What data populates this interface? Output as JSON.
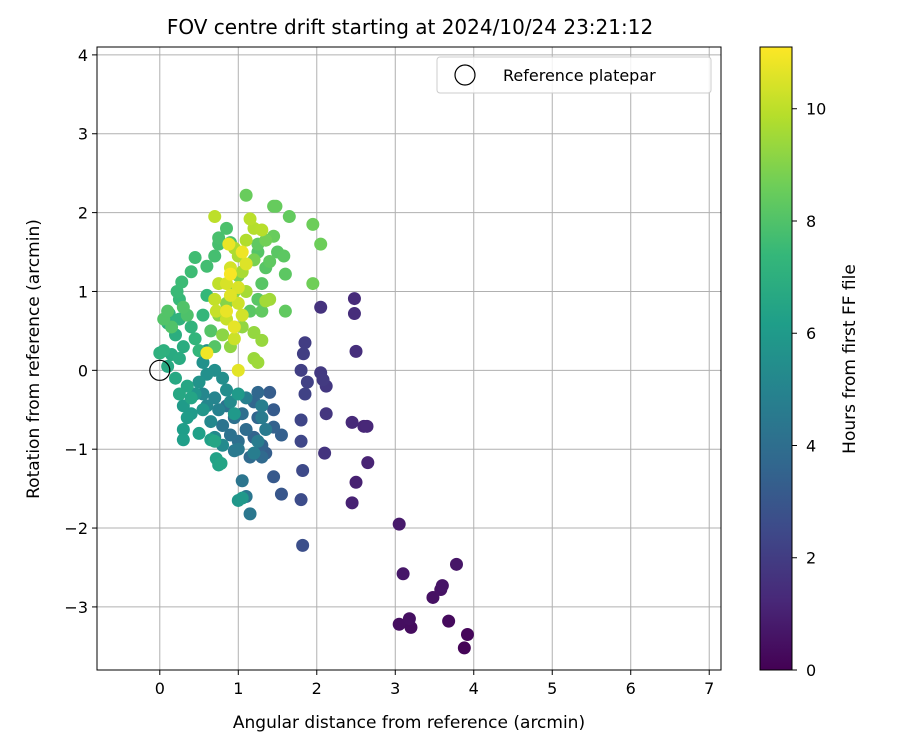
{
  "chart_data": {
    "type": "scatter",
    "title": "FOV centre drift starting at 2024/10/24 23:21:12",
    "xlabel": "Angular distance from reference (arcmin)",
    "ylabel": "Rotation from reference (arcmin)",
    "xlim": [
      -0.8,
      7.15
    ],
    "ylim": [
      -3.8,
      4.1
    ],
    "xticks": [
      0,
      1,
      2,
      3,
      4,
      5,
      6,
      7
    ],
    "yticks": [
      -3,
      -2,
      -1,
      0,
      1,
      2,
      3,
      4
    ],
    "xtick_labels": [
      "0",
      "1",
      "2",
      "3",
      "4",
      "5",
      "6",
      "7"
    ],
    "ytick_labels": [
      "−3",
      "−2",
      "−1",
      "0",
      "1",
      "2",
      "3",
      "4"
    ],
    "grid": true,
    "legend": {
      "position": "top-right",
      "entries": [
        "Reference platepar"
      ]
    },
    "reference_point": {
      "x": 0,
      "y": 0,
      "label": "Reference platepar"
    },
    "colorbar": {
      "label": "Hours from first FF file",
      "min": 0,
      "max": 11.1,
      "ticks": [
        0,
        2,
        4,
        6,
        8,
        10
      ],
      "tick_labels": [
        "0",
        "2",
        "4",
        "6",
        "8",
        "10"
      ],
      "colormap": "viridis",
      "stops": [
        "#440154",
        "#482878",
        "#3e4989",
        "#31688e",
        "#26828e",
        "#1f9e89",
        "#35b779",
        "#6ece58",
        "#b5de2b",
        "#fde725"
      ]
    },
    "points": [
      {
        "x": 3.88,
        "y": -3.52,
        "t": 0.1
      },
      {
        "x": 3.92,
        "y": -3.35,
        "t": 0.2
      },
      {
        "x": 3.68,
        "y": -3.18,
        "t": 0.3
      },
      {
        "x": 3.2,
        "y": -3.26,
        "t": 0.35
      },
      {
        "x": 3.05,
        "y": -3.22,
        "t": 0.4
      },
      {
        "x": 3.18,
        "y": -3.15,
        "t": 0.45
      },
      {
        "x": 3.48,
        "y": -2.88,
        "t": 0.5
      },
      {
        "x": 3.58,
        "y": -2.78,
        "t": 0.55
      },
      {
        "x": 3.6,
        "y": -2.73,
        "t": 0.6
      },
      {
        "x": 3.78,
        "y": -2.46,
        "t": 0.65
      },
      {
        "x": 3.1,
        "y": -2.58,
        "t": 0.7
      },
      {
        "x": 3.05,
        "y": -1.95,
        "t": 0.8
      },
      {
        "x": 2.5,
        "y": -1.42,
        "t": 1.0
      },
      {
        "x": 2.45,
        "y": -1.68,
        "t": 1.05
      },
      {
        "x": 2.65,
        "y": -1.17,
        "t": 1.1
      },
      {
        "x": 2.6,
        "y": -0.71,
        "t": 1.2
      },
      {
        "x": 2.64,
        "y": -0.71,
        "t": 1.25
      },
      {
        "x": 2.45,
        "y": -0.66,
        "t": 1.3
      },
      {
        "x": 2.48,
        "y": 0.91,
        "t": 1.4
      },
      {
        "x": 2.48,
        "y": 0.72,
        "t": 1.45
      },
      {
        "x": 2.5,
        "y": 0.24,
        "t": 1.5
      },
      {
        "x": 2.05,
        "y": 0.8,
        "t": 1.6
      },
      {
        "x": 2.1,
        "y": -1.05,
        "t": 1.7
      },
      {
        "x": 2.12,
        "y": -0.55,
        "t": 1.75
      },
      {
        "x": 2.12,
        "y": -0.2,
        "t": 1.8
      },
      {
        "x": 2.05,
        "y": -0.03,
        "t": 1.85
      },
      {
        "x": 2.08,
        "y": -0.12,
        "t": 1.9
      },
      {
        "x": 1.85,
        "y": 0.35,
        "t": 2.0
      },
      {
        "x": 1.83,
        "y": 0.21,
        "t": 2.05
      },
      {
        "x": 1.8,
        "y": 0.0,
        "t": 2.1
      },
      {
        "x": 1.88,
        "y": -0.15,
        "t": 2.15
      },
      {
        "x": 1.85,
        "y": -0.3,
        "t": 2.2
      },
      {
        "x": 1.8,
        "y": -0.63,
        "t": 2.3
      },
      {
        "x": 1.8,
        "y": -0.9,
        "t": 2.4
      },
      {
        "x": 1.82,
        "y": -1.27,
        "t": 2.5
      },
      {
        "x": 1.8,
        "y": -1.64,
        "t": 2.6
      },
      {
        "x": 1.82,
        "y": -2.22,
        "t": 2.7
      },
      {
        "x": 1.55,
        "y": -1.57,
        "t": 3.0
      },
      {
        "x": 1.45,
        "y": -1.35,
        "t": 3.1
      },
      {
        "x": 1.45,
        "y": -0.5,
        "t": 3.2
      },
      {
        "x": 1.4,
        "y": -0.28,
        "t": 3.25
      },
      {
        "x": 1.35,
        "y": -1.05,
        "t": 3.3
      },
      {
        "x": 1.55,
        "y": -0.82,
        "t": 3.4
      },
      {
        "x": 1.45,
        "y": -0.72,
        "t": 3.45
      },
      {
        "x": 1.3,
        "y": -0.95,
        "t": 3.5
      },
      {
        "x": 1.2,
        "y": -0.85,
        "t": 3.55
      },
      {
        "x": 1.25,
        "y": -0.6,
        "t": 3.6
      },
      {
        "x": 1.2,
        "y": -0.4,
        "t": 3.65
      },
      {
        "x": 1.25,
        "y": -0.28,
        "t": 3.7
      },
      {
        "x": 1.3,
        "y": -1.1,
        "t": 3.8
      },
      {
        "x": 1.15,
        "y": -1.1,
        "t": 3.85
      },
      {
        "x": 1.1,
        "y": -0.75,
        "t": 3.9
      },
      {
        "x": 1.05,
        "y": -0.55,
        "t": 4.0
      },
      {
        "x": 1.0,
        "y": -0.9,
        "t": 4.05
      },
      {
        "x": 0.95,
        "y": -0.6,
        "t": 4.1
      },
      {
        "x": 0.9,
        "y": -0.82,
        "t": 4.15
      },
      {
        "x": 0.85,
        "y": -0.45,
        "t": 4.2
      },
      {
        "x": 0.8,
        "y": -0.7,
        "t": 4.25
      },
      {
        "x": 1.05,
        "y": -1.4,
        "t": 4.3
      },
      {
        "x": 1.1,
        "y": -1.6,
        "t": 4.35
      },
      {
        "x": 1.15,
        "y": -1.82,
        "t": 4.4
      },
      {
        "x": 1.0,
        "y": -1.0,
        "t": 4.45
      },
      {
        "x": 0.95,
        "y": -1.02,
        "t": 4.5
      },
      {
        "x": 1.35,
        "y": -0.75,
        "t": 4.55
      },
      {
        "x": 1.3,
        "y": -0.6,
        "t": 4.6
      },
      {
        "x": 1.25,
        "y": -0.9,
        "t": 4.65
      },
      {
        "x": 1.2,
        "y": -1.05,
        "t": 4.7
      },
      {
        "x": 1.3,
        "y": -0.45,
        "t": 4.75
      },
      {
        "x": 1.1,
        "y": -0.35,
        "t": 4.8
      },
      {
        "x": 0.75,
        "y": -0.5,
        "t": 4.9
      },
      {
        "x": 0.7,
        "y": -0.35,
        "t": 5.0
      },
      {
        "x": 0.6,
        "y": -0.45,
        "t": 5.1
      },
      {
        "x": 0.55,
        "y": -0.3,
        "t": 5.15
      },
      {
        "x": 0.65,
        "y": -0.65,
        "t": 5.2
      },
      {
        "x": 0.7,
        "y": -0.85,
        "t": 5.25
      },
      {
        "x": 0.8,
        "y": -0.95,
        "t": 5.3
      },
      {
        "x": 0.9,
        "y": -0.4,
        "t": 5.35
      },
      {
        "x": 0.85,
        "y": -0.25,
        "t": 5.4
      },
      {
        "x": 0.8,
        "y": -0.1,
        "t": 5.45
      },
      {
        "x": 0.7,
        "y": 0.0,
        "t": 5.5
      },
      {
        "x": 0.6,
        "y": -0.05,
        "t": 5.55
      },
      {
        "x": 0.55,
        "y": 0.1,
        "t": 5.6
      },
      {
        "x": 0.6,
        "y": 0.25,
        "t": 5.65
      },
      {
        "x": 0.5,
        "y": -0.15,
        "t": 5.7
      },
      {
        "x": 0.45,
        "y": -0.3,
        "t": 5.75
      },
      {
        "x": 0.55,
        "y": -0.5,
        "t": 5.8
      },
      {
        "x": 1.0,
        "y": -1.65,
        "t": 5.85
      },
      {
        "x": 1.05,
        "y": -1.62,
        "t": 5.9
      },
      {
        "x": 0.95,
        "y": -0.55,
        "t": 5.95
      },
      {
        "x": 1.0,
        "y": -0.3,
        "t": 6.0
      },
      {
        "x": 0.4,
        "y": -0.55,
        "t": 6.0
      },
      {
        "x": 0.3,
        "y": -0.45,
        "t": 6.05
      },
      {
        "x": 0.35,
        "y": -0.6,
        "t": 6.1
      },
      {
        "x": 0.3,
        "y": -0.75,
        "t": 6.15
      },
      {
        "x": 0.3,
        "y": -0.88,
        "t": 6.2
      },
      {
        "x": 0.5,
        "y": -0.8,
        "t": 6.25
      },
      {
        "x": 0.65,
        "y": -0.88,
        "t": 6.3
      },
      {
        "x": 0.72,
        "y": -1.12,
        "t": 6.35
      },
      {
        "x": 0.75,
        "y": -1.2,
        "t": 6.4
      },
      {
        "x": 0.78,
        "y": -1.18,
        "t": 6.45
      },
      {
        "x": 0.7,
        "y": -0.9,
        "t": 6.5
      },
      {
        "x": 0.4,
        "y": -0.35,
        "t": 6.5
      },
      {
        "x": 0.35,
        "y": -0.2,
        "t": 6.55
      },
      {
        "x": 0.25,
        "y": -0.3,
        "t": 6.6
      },
      {
        "x": 0.2,
        "y": -0.1,
        "t": 6.65
      },
      {
        "x": 0.1,
        "y": 0.05,
        "t": 6.7
      },
      {
        "x": 0.15,
        "y": 0.2,
        "t": 6.75
      },
      {
        "x": 0.25,
        "y": 0.15,
        "t": 6.8
      },
      {
        "x": 0.3,
        "y": 0.3,
        "t": 6.85
      },
      {
        "x": 0.2,
        "y": 0.45,
        "t": 6.9
      },
      {
        "x": 0.1,
        "y": 0.6,
        "t": 6.95
      },
      {
        "x": 0.05,
        "y": 0.25,
        "t": 7.0
      },
      {
        "x": 0.0,
        "y": 0.22,
        "t": 7.05
      },
      {
        "x": 0.12,
        "y": 0.72,
        "t": 7.1
      },
      {
        "x": 0.25,
        "y": 0.65,
        "t": 7.15
      },
      {
        "x": 0.4,
        "y": 0.55,
        "t": 7.2
      },
      {
        "x": 0.45,
        "y": 0.4,
        "t": 7.25
      },
      {
        "x": 0.5,
        "y": 0.25,
        "t": 7.3
      },
      {
        "x": 0.55,
        "y": 0.7,
        "t": 7.35
      },
      {
        "x": 0.6,
        "y": 0.95,
        "t": 7.4
      },
      {
        "x": 0.25,
        "y": 0.9,
        "t": 7.45
      },
      {
        "x": 0.22,
        "y": 1.0,
        "t": 7.5
      },
      {
        "x": 0.28,
        "y": 1.12,
        "t": 7.55
      },
      {
        "x": 0.4,
        "y": 1.25,
        "t": 7.6
      },
      {
        "x": 0.45,
        "y": 1.43,
        "t": 7.65
      },
      {
        "x": 0.6,
        "y": 1.32,
        "t": 7.7
      },
      {
        "x": 0.7,
        "y": 1.45,
        "t": 7.75
      },
      {
        "x": 0.75,
        "y": 1.6,
        "t": 7.8
      },
      {
        "x": 0.75,
        "y": 1.68,
        "t": 7.85
      },
      {
        "x": 0.85,
        "y": 1.8,
        "t": 7.9
      },
      {
        "x": 0.9,
        "y": 1.62,
        "t": 7.95
      },
      {
        "x": 0.35,
        "y": 0.7,
        "t": 7.95
      },
      {
        "x": 0.3,
        "y": 0.8,
        "t": 8.0
      },
      {
        "x": 0.15,
        "y": 0.55,
        "t": 8.0
      },
      {
        "x": 0.05,
        "y": 0.65,
        "t": 8.05
      },
      {
        "x": 0.1,
        "y": 0.75,
        "t": 8.05
      },
      {
        "x": 0.65,
        "y": 0.5,
        "t": 8.1
      },
      {
        "x": 0.7,
        "y": 0.3,
        "t": 8.1
      },
      {
        "x": 1.25,
        "y": 1.5,
        "t": 8.1
      },
      {
        "x": 1.35,
        "y": 1.3,
        "t": 8.15
      },
      {
        "x": 1.3,
        "y": 1.1,
        "t": 8.15
      },
      {
        "x": 1.25,
        "y": 0.9,
        "t": 8.2
      },
      {
        "x": 1.15,
        "y": 0.75,
        "t": 8.2
      },
      {
        "x": 1.5,
        "y": 1.5,
        "t": 8.2
      },
      {
        "x": 1.58,
        "y": 1.45,
        "t": 8.25
      },
      {
        "x": 1.6,
        "y": 1.22,
        "t": 8.25
      },
      {
        "x": 1.4,
        "y": 1.38,
        "t": 8.3
      },
      {
        "x": 1.25,
        "y": 1.6,
        "t": 8.3
      },
      {
        "x": 1.6,
        "y": 0.75,
        "t": 8.35
      },
      {
        "x": 1.3,
        "y": 0.75,
        "t": 8.35
      },
      {
        "x": 1.65,
        "y": 1.95,
        "t": 8.4
      },
      {
        "x": 1.45,
        "y": 2.08,
        "t": 8.45
      },
      {
        "x": 1.48,
        "y": 2.08,
        "t": 8.45
      },
      {
        "x": 1.1,
        "y": 2.22,
        "t": 8.5
      },
      {
        "x": 1.45,
        "y": 1.7,
        "t": 8.5
      },
      {
        "x": 1.95,
        "y": 1.85,
        "t": 8.6
      },
      {
        "x": 2.05,
        "y": 1.6,
        "t": 8.6
      },
      {
        "x": 1.95,
        "y": 1.1,
        "t": 8.65
      },
      {
        "x": 1.35,
        "y": 1.65,
        "t": 8.7
      },
      {
        "x": 1.2,
        "y": 1.4,
        "t": 8.8
      },
      {
        "x": 1.0,
        "y": 1.2,
        "t": 8.9
      },
      {
        "x": 0.95,
        "y": 1.0,
        "t": 9.0
      },
      {
        "x": 0.85,
        "y": 0.85,
        "t": 9.05
      },
      {
        "x": 0.75,
        "y": 0.7,
        "t": 9.1
      },
      {
        "x": 0.8,
        "y": 0.45,
        "t": 9.15
      },
      {
        "x": 0.9,
        "y": 0.3,
        "t": 9.2
      },
      {
        "x": 1.05,
        "y": 0.55,
        "t": 9.25
      },
      {
        "x": 1.2,
        "y": 0.48,
        "t": 9.3
      },
      {
        "x": 1.3,
        "y": 0.38,
        "t": 9.35
      },
      {
        "x": 1.2,
        "y": 0.15,
        "t": 9.4
      },
      {
        "x": 1.25,
        "y": 0.1,
        "t": 9.45
      },
      {
        "x": 1.4,
        "y": 0.9,
        "t": 9.5
      },
      {
        "x": 1.35,
        "y": 0.88,
        "t": 9.55
      },
      {
        "x": 1.1,
        "y": 1.0,
        "t": 9.6
      },
      {
        "x": 1.05,
        "y": 1.25,
        "t": 9.65
      },
      {
        "x": 1.0,
        "y": 1.45,
        "t": 9.7
      },
      {
        "x": 0.95,
        "y": 1.55,
        "t": 9.75
      },
      {
        "x": 1.1,
        "y": 1.65,
        "t": 9.8
      },
      {
        "x": 1.2,
        "y": 1.8,
        "t": 9.85
      },
      {
        "x": 1.3,
        "y": 1.78,
        "t": 9.9
      },
      {
        "x": 1.15,
        "y": 1.92,
        "t": 9.95
      },
      {
        "x": 0.7,
        "y": 1.95,
        "t": 10.0
      },
      {
        "x": 0.75,
        "y": 1.1,
        "t": 10.05
      },
      {
        "x": 0.7,
        "y": 0.9,
        "t": 10.1
      },
      {
        "x": 0.72,
        "y": 0.75,
        "t": 10.15
      },
      {
        "x": 0.85,
        "y": 0.65,
        "t": 10.2
      },
      {
        "x": 0.95,
        "y": 0.4,
        "t": 10.25
      },
      {
        "x": 1.0,
        "y": 0.85,
        "t": 10.3
      },
      {
        "x": 1.05,
        "y": 0.7,
        "t": 10.35
      },
      {
        "x": 0.9,
        "y": 1.3,
        "t": 10.4
      },
      {
        "x": 0.85,
        "y": 1.1,
        "t": 10.45
      },
      {
        "x": 1.0,
        "y": 1.05,
        "t": 10.5
      },
      {
        "x": 1.1,
        "y": 1.35,
        "t": 10.55
      },
      {
        "x": 0.9,
        "y": 0.95,
        "t": 10.6
      },
      {
        "x": 1.0,
        "y": 0.0,
        "t": 10.65
      },
      {
        "x": 0.95,
        "y": 0.55,
        "t": 10.7
      },
      {
        "x": 0.85,
        "y": 0.75,
        "t": 10.75
      },
      {
        "x": 0.88,
        "y": 1.6,
        "t": 10.8
      },
      {
        "x": 1.05,
        "y": 1.5,
        "t": 10.85
      },
      {
        "x": 0.6,
        "y": 0.22,
        "t": 10.9
      },
      {
        "x": 0.9,
        "y": 1.22,
        "t": 11.0
      }
    ]
  }
}
